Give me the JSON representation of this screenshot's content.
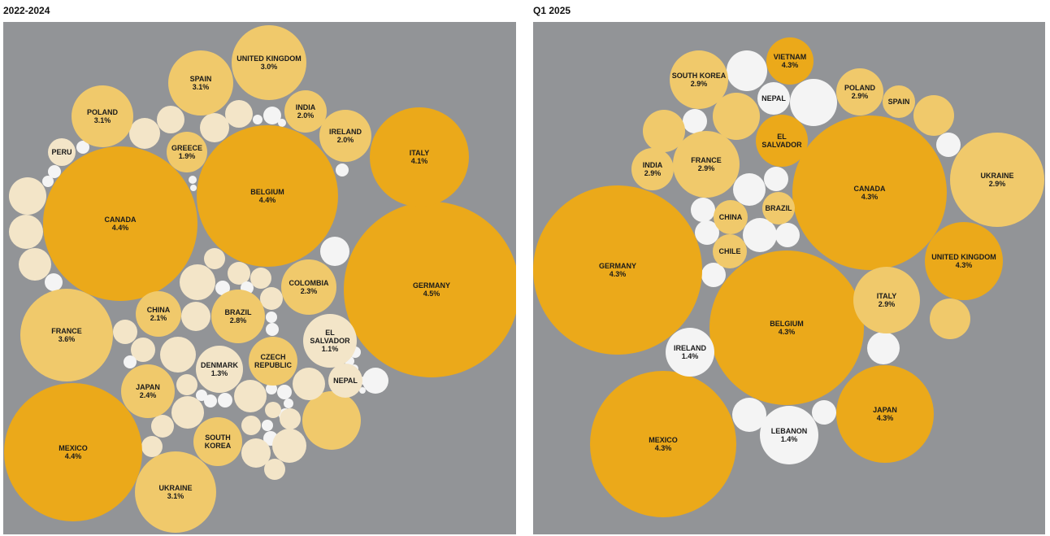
{
  "colors": {
    "background": "#929497",
    "high": "#EBA91A",
    "mid": "#F0C96B",
    "low": "#F3E5C8",
    "none": "#F4F4F4"
  },
  "chart_data": [
    {
      "type": "bubble",
      "title": "2022-2024",
      "bubbles": [
        {
          "label": "GERMANY",
          "value": "4.5%",
          "tier": "high"
        },
        {
          "label": "CANADA",
          "value": "4.4%",
          "tier": "high"
        },
        {
          "label": "BELGIUM",
          "value": "4.4%",
          "tier": "high"
        },
        {
          "label": "MEXICO",
          "value": "4.4%",
          "tier": "high"
        },
        {
          "label": "ITALY",
          "value": "4.1%",
          "tier": "high"
        },
        {
          "label": "FRANCE",
          "value": "3.6%",
          "tier": "mid"
        },
        {
          "label": "UKRAINE",
          "value": "3.1%",
          "tier": "mid"
        },
        {
          "label": "SPAIN",
          "value": "3.1%",
          "tier": "mid"
        },
        {
          "label": "POLAND",
          "value": "3.1%",
          "tier": "mid"
        },
        {
          "label": "UNITED KINGDOM",
          "value": "3.0%",
          "tier": "mid"
        },
        {
          "label": "BRAZIL",
          "value": "2.8%",
          "tier": "mid"
        },
        {
          "label": "JAPAN",
          "value": "2.4%",
          "tier": "mid"
        },
        {
          "label": "COLOMBIA",
          "value": "2.3%",
          "tier": "mid"
        },
        {
          "label": "CHINA",
          "value": "2.1%",
          "tier": "mid"
        },
        {
          "label": "INDIA",
          "value": "2.0%",
          "tier": "mid"
        },
        {
          "label": "IRELAND",
          "value": "2.0%",
          "tier": "mid"
        },
        {
          "label": "GREECE",
          "value": "1.9%",
          "tier": "mid"
        },
        {
          "label": "DENMARK",
          "value": "1.3%",
          "tier": "low"
        },
        {
          "label": "EL SALVADOR",
          "value": "1.1%",
          "tier": "low"
        },
        {
          "label": "CZECH REPUBLIC",
          "value": "",
          "tier": "mid"
        },
        {
          "label": "SOUTH KOREA",
          "value": "",
          "tier": "mid"
        },
        {
          "label": "NEPAL",
          "value": "",
          "tier": "low"
        },
        {
          "label": "PERU",
          "value": "",
          "tier": "low"
        }
      ]
    },
    {
      "type": "bubble",
      "title": "Q1 2025",
      "bubbles": [
        {
          "label": "GERMANY",
          "value": "4.3%",
          "tier": "high"
        },
        {
          "label": "CANADA",
          "value": "4.3%",
          "tier": "high"
        },
        {
          "label": "BELGIUM",
          "value": "4.3%",
          "tier": "high"
        },
        {
          "label": "MEXICO",
          "value": "4.3%",
          "tier": "high"
        },
        {
          "label": "JAPAN",
          "value": "4.3%",
          "tier": "high"
        },
        {
          "label": "UNITED KINGDOM",
          "value": "4.3%",
          "tier": "high"
        },
        {
          "label": "VIETNAM",
          "value": "4.3%",
          "tier": "high"
        },
        {
          "label": "EL SALVADOR",
          "value": "",
          "tier": "high"
        },
        {
          "label": "UKRAINE",
          "value": "2.9%",
          "tier": "mid"
        },
        {
          "label": "ITALY",
          "value": "2.9%",
          "tier": "mid"
        },
        {
          "label": "FRANCE",
          "value": "2.9%",
          "tier": "mid"
        },
        {
          "label": "SOUTH KOREA",
          "value": "2.9%",
          "tier": "mid"
        },
        {
          "label": "POLAND",
          "value": "2.9%",
          "tier": "mid"
        },
        {
          "label": "INDIA",
          "value": "2.9%",
          "tier": "mid"
        },
        {
          "label": "SPAIN",
          "value": "",
          "tier": "mid"
        },
        {
          "label": "BRAZIL",
          "value": "",
          "tier": "mid"
        },
        {
          "label": "CHINA",
          "value": "",
          "tier": "mid"
        },
        {
          "label": "CHILE",
          "value": "",
          "tier": "mid"
        },
        {
          "label": "IRELAND",
          "value": "1.4%",
          "tier": "none"
        },
        {
          "label": "LEBANON",
          "value": "1.4%",
          "tier": "none"
        },
        {
          "label": "NEPAL",
          "value": "",
          "tier": "none"
        }
      ]
    }
  ]
}
